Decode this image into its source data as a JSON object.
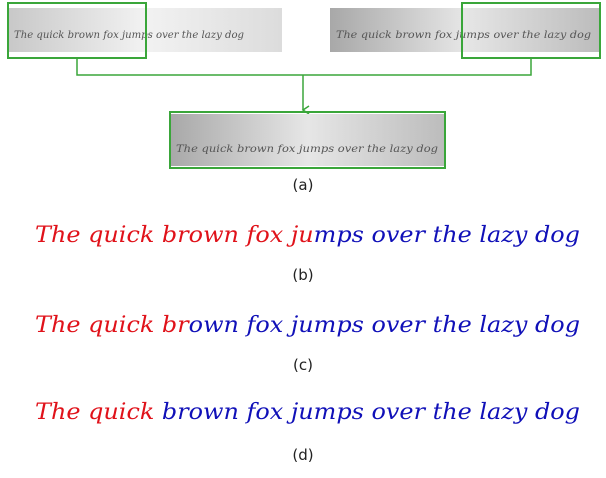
{
  "panel_a": {
    "left_strip_text": "The quick brown fox jumps over the lazy dog",
    "right_strip_text": "The quick brown fox jumps over the lazy dog",
    "merged_strip_text": "The quick brown fox jumps over the lazy dog",
    "label": "(a)"
  },
  "panel_b": {
    "red_text": "The quick brown fox ju",
    "blue_text": "mps over the lazy dog",
    "label": "(b)"
  },
  "panel_c": {
    "red_text": "The quick br",
    "blue_text": "own fox jumps over the lazy dog",
    "label": "(c)"
  },
  "panel_d": {
    "red_text": "The quick",
    "blue_text": " brown fox jumps over the lazy dog",
    "label": "(d)"
  }
}
